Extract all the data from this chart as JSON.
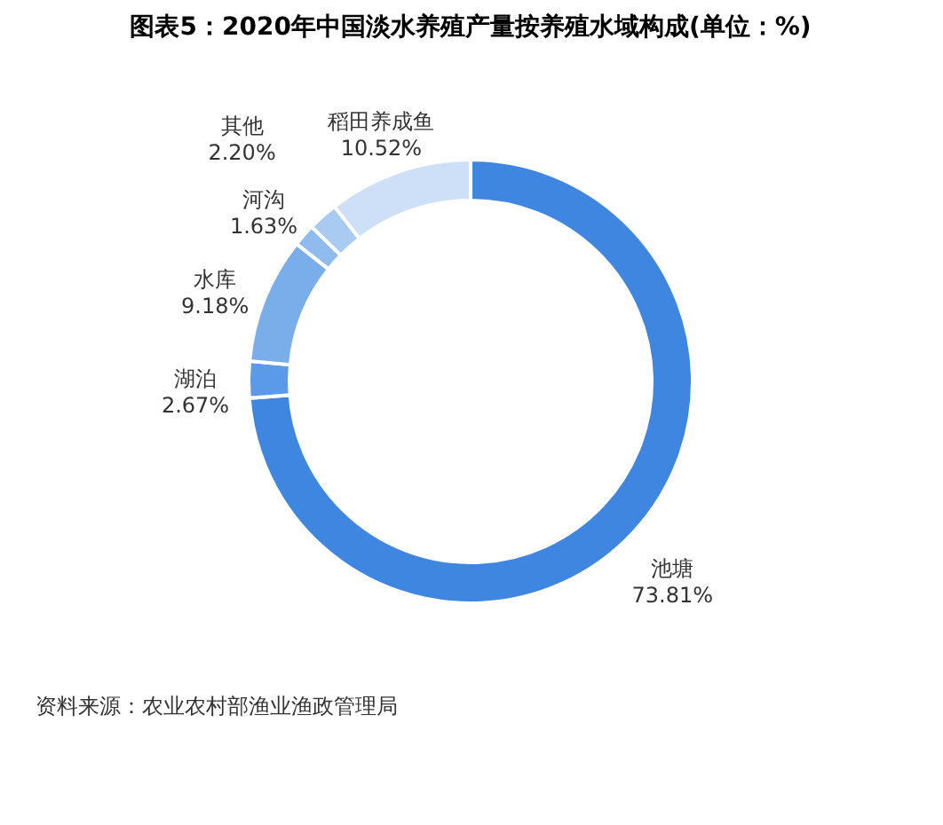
{
  "chart_data": {
    "type": "donut",
    "title": "图表5：2020年中国淡水养殖产量按养殖水域构成(单位：%)",
    "categories": [
      "池塘",
      "湖泊",
      "水库",
      "河沟",
      "其他",
      "稻田养成鱼"
    ],
    "values": [
      73.81,
      2.67,
      9.18,
      1.63,
      2.2,
      10.52
    ],
    "value_labels": [
      "73.81%",
      "2.67%",
      "9.18%",
      "1.63%",
      "2.20%",
      "10.52%"
    ],
    "colors": [
      "#3f86e0",
      "#5b9ae6",
      "#7aaeea",
      "#8fbbee",
      "#a9cbf2",
      "#cde0f8"
    ],
    "legend": false,
    "annotations": [
      "资料来源：农业农村部渔业渔政管理局"
    ]
  }
}
